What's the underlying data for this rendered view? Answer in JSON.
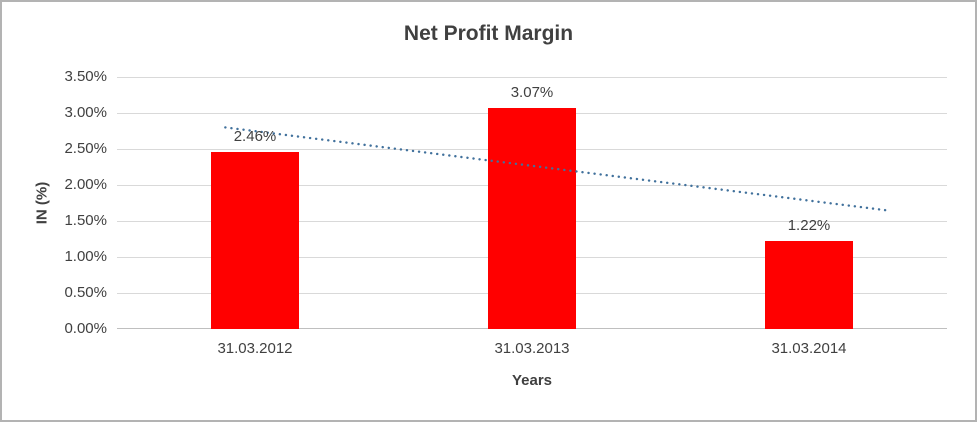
{
  "chart_data": {
    "type": "bar",
    "title": "Net Profit Margin",
    "xlabel": "Years",
    "ylabel": "IN (%)",
    "categories": [
      "31.03.2012",
      "31.03.2013",
      "31.03.2014"
    ],
    "values": [
      2.46,
      3.07,
      1.22
    ],
    "data_labels": [
      "2.46%",
      "3.07%",
      "1.22%"
    ],
    "ylim": [
      0,
      3.5
    ],
    "ytick_step": 0.5,
    "ytick_labels": [
      "0.00%",
      "0.50%",
      "1.00%",
      "1.50%",
      "2.00%",
      "2.50%",
      "3.00%",
      "3.50%"
    ],
    "grid": true,
    "legend": "none",
    "bar_color": "#ff0000",
    "axis_color": "#bfbfbf",
    "gridline_color": "#d9d9d9",
    "text_color": "#404040",
    "trendline": {
      "type": "linear",
      "style": "dotted",
      "color": "#41719c",
      "start_value": 2.8,
      "end_value": 1.65
    }
  }
}
